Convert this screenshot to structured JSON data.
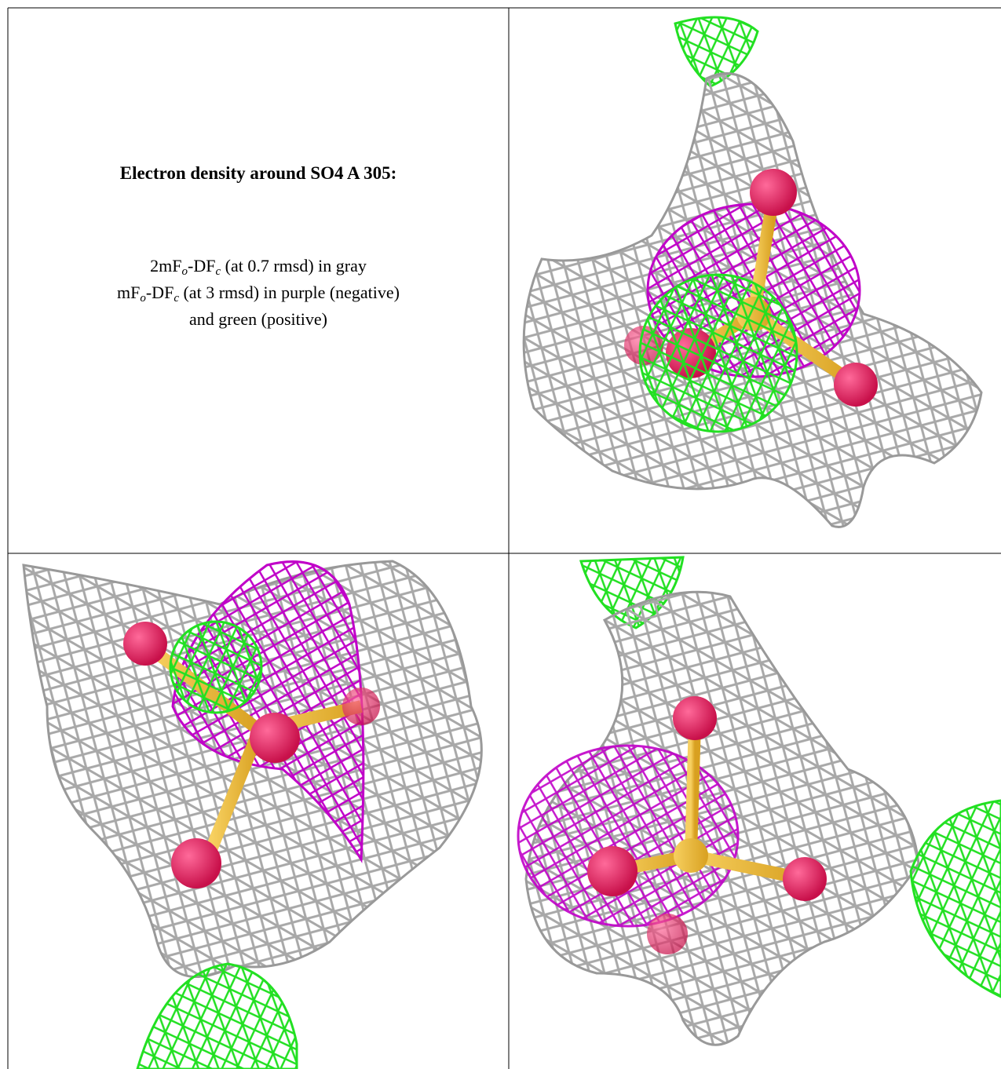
{
  "caption": {
    "title": "Electron density around SO4 A 305:",
    "lines": [
      [
        "2mF",
        "o",
        "-DF",
        "c",
        " (at 0.7 rmsd) in gray"
      ],
      [
        "mF",
        "o",
        "-DF",
        "c",
        " (at 3 rmsd) in purple (negative)"
      ],
      [
        "and green (positive)"
      ]
    ]
  }
}
